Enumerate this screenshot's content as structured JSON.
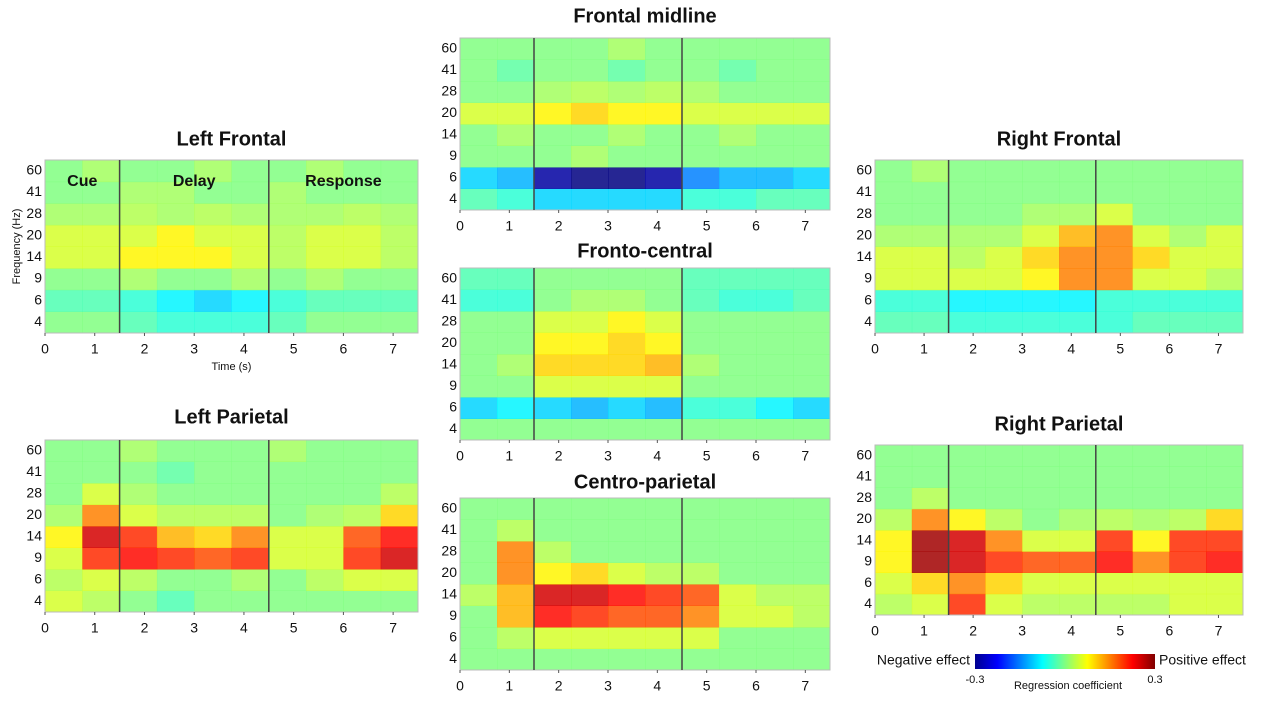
{
  "chart_data": [
    {
      "type": "heatmap",
      "title": "Left Frontal",
      "xlim": [
        0,
        7.5
      ],
      "xticks": [
        0,
        1,
        2,
        3,
        4,
        5,
        6,
        7
      ],
      "y": [
        4,
        6,
        9,
        14,
        20,
        28,
        41,
        60
      ],
      "vlines": [
        1.5,
        4.5
      ],
      "ylabel": "Frequency (Hz)",
      "xlabel": "Time (s)",
      "annotations": [
        "Cue",
        "Delay",
        "Response"
      ],
      "z": [
        [
          0,
          0,
          -0.03,
          -0.05,
          -0.05,
          -0.05,
          -0.03,
          0,
          0,
          0
        ],
        [
          -0.03,
          -0.03,
          -0.05,
          -0.08,
          -0.1,
          -0.08,
          -0.05,
          -0.03,
          -0.03,
          -0.03
        ],
        [
          0,
          0,
          0.02,
          0,
          0,
          0.02,
          0,
          0.02,
          0,
          0
        ],
        [
          0.05,
          0.05,
          0.08,
          0.08,
          0.08,
          0.05,
          0.03,
          0.05,
          0.05,
          0.03
        ],
        [
          0.05,
          0.05,
          0.05,
          0.08,
          0.05,
          0.05,
          0.03,
          0.05,
          0.05,
          0.03
        ],
        [
          0.02,
          0.02,
          0.03,
          0.02,
          0.03,
          0.02,
          0.02,
          0.02,
          0.03,
          0.02
        ],
        [
          0,
          0,
          0.02,
          0.02,
          0,
          0,
          0.02,
          0,
          0,
          0
        ],
        [
          0,
          0.02,
          0,
          0,
          0.02,
          0,
          0,
          0.02,
          0,
          0
        ]
      ]
    },
    {
      "type": "heatmap",
      "title": "Left Parietal",
      "xlim": [
        0,
        7.5
      ],
      "xticks": [
        0,
        1,
        2,
        3,
        4,
        5,
        6,
        7
      ],
      "y": [
        4,
        6,
        9,
        14,
        20,
        28,
        41,
        60
      ],
      "vlines": [
        1.5,
        4.5
      ],
      "z": [
        [
          0.05,
          0.03,
          0,
          -0.03,
          0,
          0,
          0,
          0,
          0,
          0
        ],
        [
          0.03,
          0.05,
          0.03,
          0,
          0,
          0.02,
          0,
          0.03,
          0.05,
          0.05
        ],
        [
          0.05,
          0.2,
          0.22,
          0.2,
          0.18,
          0.2,
          0.05,
          0.05,
          0.2,
          0.25
        ],
        [
          0.08,
          0.25,
          0.2,
          0.12,
          0.1,
          0.15,
          0.05,
          0.05,
          0.18,
          0.22
        ],
        [
          0.02,
          0.15,
          0.05,
          0.03,
          0.03,
          0.03,
          0,
          0.02,
          0.03,
          0.1
        ],
        [
          0,
          0.05,
          0.02,
          0,
          0,
          0,
          0,
          0,
          0,
          0.03
        ],
        [
          0,
          0,
          0,
          -0.02,
          0,
          0,
          0,
          0,
          0,
          0
        ],
        [
          0,
          0,
          0.02,
          0,
          0,
          0,
          0.02,
          0,
          0,
          0
        ]
      ]
    },
    {
      "type": "heatmap",
      "title": "Frontal midline",
      "xlim": [
        0,
        7.5
      ],
      "xticks": [
        0,
        1,
        2,
        3,
        4,
        5,
        6,
        7
      ],
      "y": [
        4,
        6,
        9,
        14,
        20,
        28,
        41,
        60
      ],
      "vlines": [
        1.5,
        4.5
      ],
      "z": [
        [
          -0.03,
          -0.05,
          -0.1,
          -0.1,
          -0.1,
          -0.1,
          -0.05,
          -0.05,
          -0.03,
          -0.03
        ],
        [
          -0.1,
          -0.12,
          -0.28,
          -0.3,
          -0.3,
          -0.28,
          -0.15,
          -0.12,
          -0.12,
          -0.1
        ],
        [
          0,
          0,
          0,
          0.02,
          0,
          0,
          0,
          0,
          0,
          0
        ],
        [
          0,
          0.02,
          0,
          0,
          0.02,
          0,
          0,
          0.02,
          0,
          0
        ],
        [
          0.05,
          0.05,
          0.08,
          0.1,
          0.08,
          0.08,
          0.05,
          0.05,
          0.05,
          0.05
        ],
        [
          0,
          0,
          0.02,
          0.03,
          0.02,
          0.03,
          0.02,
          0,
          0,
          0
        ],
        [
          0,
          -0.02,
          0,
          0,
          -0.02,
          0,
          0,
          -0.02,
          0,
          0
        ],
        [
          0,
          0,
          0,
          0,
          0.02,
          0,
          0,
          0,
          0,
          0
        ]
      ]
    },
    {
      "type": "heatmap",
      "title": "Fronto-central",
      "xlim": [
        0,
        7.5
      ],
      "xticks": [
        0,
        1,
        2,
        3,
        4,
        5,
        6,
        7
      ],
      "y": [
        4,
        6,
        9,
        14,
        20,
        28,
        41,
        60
      ],
      "vlines": [
        1.5,
        4.5
      ],
      "z": [
        [
          0,
          0,
          0,
          0,
          0,
          0,
          0,
          0,
          0,
          0
        ],
        [
          -0.1,
          -0.08,
          -0.1,
          -0.12,
          -0.1,
          -0.12,
          -0.05,
          -0.05,
          -0.08,
          -0.1
        ],
        [
          0,
          0,
          0.05,
          0.05,
          0.05,
          0.05,
          0,
          0,
          0,
          0
        ],
        [
          0,
          0.02,
          0.1,
          0.1,
          0.1,
          0.12,
          0.02,
          0,
          0,
          0
        ],
        [
          0,
          0,
          0.08,
          0.08,
          0.1,
          0.08,
          0,
          0,
          0,
          0
        ],
        [
          0,
          0,
          0.05,
          0.05,
          0.08,
          0.05,
          0,
          0,
          0,
          0
        ],
        [
          -0.05,
          -0.05,
          0,
          0.02,
          0.02,
          0,
          -0.03,
          -0.05,
          -0.05,
          -0.03
        ],
        [
          -0.03,
          -0.03,
          0,
          0,
          0,
          0,
          -0.03,
          -0.03,
          -0.03,
          -0.03
        ]
      ]
    },
    {
      "type": "heatmap",
      "title": "Centro-parietal",
      "xlim": [
        0,
        7.5
      ],
      "xticks": [
        0,
        1,
        2,
        3,
        4,
        5,
        6,
        7
      ],
      "y": [
        4,
        6,
        9,
        14,
        20,
        28,
        41,
        60
      ],
      "vlines": [
        1.5,
        4.5
      ],
      "z": [
        [
          0,
          0,
          0,
          0,
          0,
          0,
          0,
          0,
          0,
          0
        ],
        [
          0,
          0.03,
          0.05,
          0.05,
          0.05,
          0.05,
          0.05,
          0,
          0,
          0
        ],
        [
          0,
          0.12,
          0.22,
          0.2,
          0.18,
          0.18,
          0.15,
          0.05,
          0.05,
          0.03
        ],
        [
          0.03,
          0.12,
          0.25,
          0.25,
          0.22,
          0.2,
          0.18,
          0.05,
          0.03,
          0.03
        ],
        [
          0,
          0.15,
          0.08,
          0.1,
          0.05,
          0.03,
          0.03,
          0,
          0,
          0
        ],
        [
          0,
          0.15,
          0.03,
          0,
          0,
          0,
          0,
          0,
          0,
          0
        ],
        [
          0,
          0.03,
          0,
          0,
          0,
          0,
          0,
          0,
          0,
          0
        ],
        [
          0,
          0,
          0,
          0,
          0,
          0,
          0,
          0,
          0,
          0
        ]
      ]
    },
    {
      "type": "heatmap",
      "title": "Right Frontal",
      "xlim": [
        0,
        7.5
      ],
      "xticks": [
        0,
        1,
        2,
        3,
        4,
        5,
        6,
        7
      ],
      "y": [
        4,
        6,
        9,
        14,
        20,
        28,
        41,
        60
      ],
      "vlines": [
        1.5,
        4.5
      ],
      "z": [
        [
          -0.03,
          -0.03,
          -0.05,
          -0.05,
          -0.05,
          -0.05,
          -0.05,
          -0.03,
          -0.03,
          -0.03
        ],
        [
          -0.05,
          -0.05,
          -0.08,
          -0.08,
          -0.08,
          -0.08,
          -0.05,
          -0.05,
          -0.05,
          -0.05
        ],
        [
          0.05,
          0.05,
          0.05,
          0.05,
          0.08,
          0.15,
          0.15,
          0.05,
          0.05,
          0.03
        ],
        [
          0.05,
          0.05,
          0.03,
          0.05,
          0.1,
          0.15,
          0.15,
          0.1,
          0.05,
          0.05
        ],
        [
          0.02,
          0.02,
          0.02,
          0.02,
          0.05,
          0.12,
          0.15,
          0.05,
          0.02,
          0.05
        ],
        [
          0,
          0,
          0,
          0,
          0.02,
          0.02,
          0.05,
          0,
          0,
          0
        ],
        [
          0,
          0,
          0,
          0,
          0,
          0,
          0,
          0,
          0,
          0
        ],
        [
          0,
          0.02,
          0,
          0,
          0,
          0,
          0,
          0,
          0,
          0
        ]
      ]
    },
    {
      "type": "heatmap",
      "title": "Right Parietal",
      "xlim": [
        0,
        7.5
      ],
      "xticks": [
        0,
        1,
        2,
        3,
        4,
        5,
        6,
        7
      ],
      "y": [
        4,
        6,
        9,
        14,
        20,
        28,
        41,
        60
      ],
      "vlines": [
        1.5,
        4.5
      ],
      "z": [
        [
          0.03,
          0.05,
          0.2,
          0.05,
          0.03,
          0.03,
          0.03,
          0.03,
          0.05,
          0.05
        ],
        [
          0.05,
          0.1,
          0.15,
          0.1,
          0.05,
          0.05,
          0.05,
          0.05,
          0.05,
          0.05
        ],
        [
          0.08,
          0.28,
          0.25,
          0.2,
          0.18,
          0.18,
          0.22,
          0.15,
          0.2,
          0.22
        ],
        [
          0.08,
          0.28,
          0.25,
          0.15,
          0.05,
          0.05,
          0.2,
          0.08,
          0.2,
          0.2
        ],
        [
          0.03,
          0.15,
          0.08,
          0.03,
          0,
          0.02,
          0.03,
          0.02,
          0.03,
          0.1
        ],
        [
          0,
          0.03,
          0,
          0,
          0,
          0,
          0,
          0,
          0,
          0
        ],
        [
          0,
          0,
          0,
          0,
          0,
          0,
          0,
          0,
          0,
          0
        ],
        [
          0,
          0,
          0,
          0,
          0,
          0,
          0,
          0,
          0,
          0
        ]
      ]
    }
  ],
  "colorbar": {
    "colormap": "jet",
    "clim": [
      -0.3,
      0.3
    ],
    "ticks": [
      -0.3,
      0.3
    ],
    "label": "Regression coefficient",
    "left_label": "Negative effect",
    "right_label": "Positive effect"
  }
}
